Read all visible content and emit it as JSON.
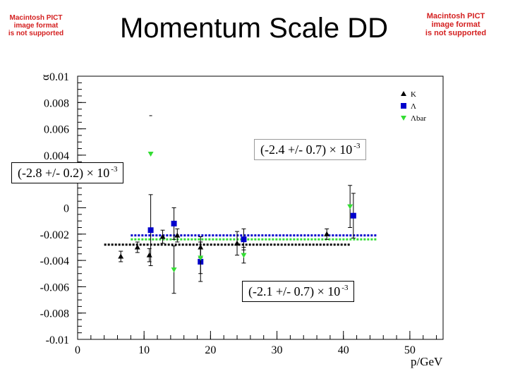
{
  "header": {
    "title": "Momentum Scale DD"
  },
  "placeholders": {
    "left": [
      "Macintosh PICT",
      "image format",
      "is not supported"
    ],
    "right": [
      "Macintosh PICT",
      "image format",
      "is not supported"
    ]
  },
  "chart_data": {
    "type": "scatter",
    "title": "Momentum Scale DD",
    "xlabel": "p/GeV",
    "ylabel": "α",
    "xlim": [
      0,
      55
    ],
    "ylim": [
      -0.01,
      0.01
    ],
    "x_ticks": [
      0,
      10,
      20,
      30,
      40,
      50
    ],
    "y_ticks": [
      0.01,
      0.008,
      0.006,
      0.004,
      0.002,
      0,
      -0.002,
      -0.004,
      -0.006,
      -0.008,
      -0.01
    ],
    "y_tick_labels": [
      "0.01",
      "0.008",
      "0.006",
      "0.004",
      "",
      "0",
      "-0.002",
      "-0.004",
      "-0.006",
      "-0.008",
      "-0.01"
    ],
    "grid": false,
    "legend_position": "top-right",
    "series": [
      {
        "name": "K",
        "color": "#000000",
        "marker": "triangle-up",
        "points": [
          {
            "x": 6.5,
            "y": -0.0037,
            "err": 0.0004
          },
          {
            "x": 9.0,
            "y": -0.003,
            "err": 0.0004
          },
          {
            "x": 10.8,
            "y": -0.0036,
            "err": 0.0005
          },
          {
            "x": 12.8,
            "y": -0.0022,
            "err": 0.0005
          },
          {
            "x": 15.0,
            "y": -0.0021,
            "err": 0.0005
          },
          {
            "x": 18.5,
            "y": -0.003,
            "err": 0.0008
          },
          {
            "x": 24.0,
            "y": -0.0027,
            "err": 0.0009
          },
          {
            "x": 37.5,
            "y": -0.002,
            "err": 0.0004
          }
        ]
      },
      {
        "name": "Λ",
        "color": "#0000cc",
        "marker": "square",
        "points": [
          {
            "x": 11.0,
            "y": -0.0017,
            "err": 0.0027
          },
          {
            "x": 14.5,
            "y": -0.0012,
            "err": 0.0012
          },
          {
            "x": 18.5,
            "y": -0.0041,
            "err": 0.0015
          },
          {
            "x": 25.0,
            "y": -0.0024,
            "err": 0.0008
          },
          {
            "x": 41.5,
            "y": -0.0006,
            "err": 0.0017
          }
        ]
      },
      {
        "name": "Λbar",
        "color": "#33dd33",
        "marker": "triangle-down",
        "points": [
          {
            "x": 11.0,
            "y": 0.0041,
            "err": 0
          },
          {
            "x": 14.5,
            "y": -0.0047,
            "err": 0.0018
          },
          {
            "x": 18.5,
            "y": -0.0038,
            "err": 0.0012
          },
          {
            "x": 25.0,
            "y": -0.0036,
            "err": 0.0006
          },
          {
            "x": 41.0,
            "y": 0.0001,
            "err": 0.0016
          }
        ]
      }
    ],
    "fits": [
      {
        "series": "K",
        "color": "#000000",
        "value": -0.0028,
        "x_range": [
          4,
          41
        ]
      },
      {
        "series": "Λ",
        "color": "#0000cc",
        "value": -0.0021,
        "x_range": [
          8,
          45
        ]
      },
      {
        "series": "Λbar",
        "color": "#33dd33",
        "value": -0.0024,
        "x_range": [
          8,
          45
        ]
      }
    ],
    "annotations": [
      {
        "text": "(-2.8 +/- 0.2) × 10",
        "exponent": "-3"
      },
      {
        "text": "(-2.4 +/- 0.7) × 10",
        "exponent": "-3"
      },
      {
        "text": "(-2.1 +/- 0.7) × 10",
        "exponent": "-3"
      }
    ],
    "stray_marks": [
      {
        "x": 11.0,
        "y": 0.007,
        "color": "#000000"
      }
    ]
  }
}
